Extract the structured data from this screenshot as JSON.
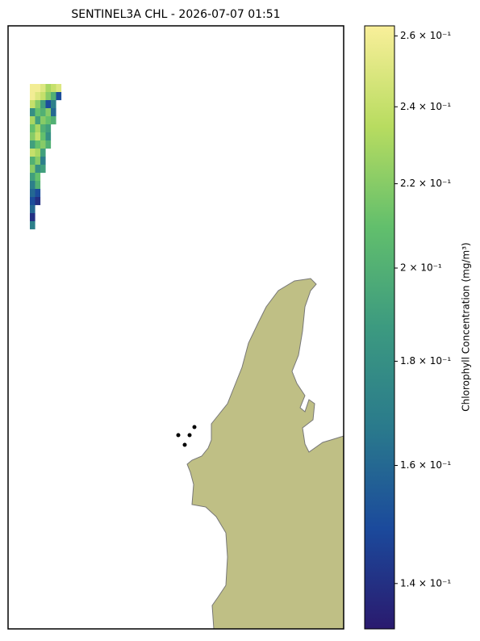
{
  "chart_data": {
    "type": "raster",
    "title": "SENTINEL3A CHL - 2026-07-07 01:51",
    "colorbar_label": "Chlorophyll Concentration (mg/m³)",
    "colorbar_scale": "log",
    "colormap": [
      "#2a1a6e",
      "#1b4a9c",
      "#2a7a8c",
      "#3c9a80",
      "#62bf6c",
      "#b8dc60",
      "#f9ef9a"
    ],
    "clim": [
      0.133,
      0.263
    ],
    "cticks": [
      {
        "value": 0.14,
        "label": "1.4 × 10⁻¹"
      },
      {
        "value": 0.16,
        "label": "1.6 × 10⁻¹"
      },
      {
        "value": 0.18,
        "label": "1.8 × 10⁻¹"
      },
      {
        "value": 0.2,
        "label": "2 × 10⁻¹"
      },
      {
        "value": 0.22,
        "label": "2.2 × 10⁻¹"
      },
      {
        "value": 0.24,
        "label": "2.4 × 10⁻¹"
      },
      {
        "value": 0.26,
        "label": "2.6 × 10⁻¹"
      }
    ],
    "grid_values": [
      [
        0.26,
        0.26,
        0.25,
        0.23,
        0.24,
        0.25
      ],
      [
        0.26,
        0.25,
        0.24,
        0.22,
        0.2,
        0.15
      ],
      [
        0.24,
        0.22,
        0.19,
        0.15,
        0.17,
        null
      ],
      [
        0.18,
        0.21,
        0.2,
        0.22,
        0.16,
        null
      ],
      [
        0.23,
        0.19,
        0.22,
        0.21,
        0.2,
        null
      ],
      [
        0.21,
        0.23,
        0.2,
        0.19,
        null,
        null
      ],
      [
        0.22,
        0.24,
        0.21,
        0.18,
        null,
        null
      ],
      [
        0.19,
        0.21,
        0.22,
        0.2,
        null,
        null
      ],
      [
        0.24,
        0.23,
        0.19,
        null,
        null,
        null
      ],
      [
        0.2,
        0.22,
        0.17,
        null,
        null,
        null
      ],
      [
        0.22,
        0.18,
        0.19,
        null,
        null,
        null
      ],
      [
        0.19,
        0.21,
        null,
        null,
        null,
        null
      ],
      [
        0.17,
        0.2,
        null,
        null,
        null,
        null
      ],
      [
        0.16,
        0.15,
        null,
        null,
        null,
        null
      ],
      [
        0.15,
        0.14,
        null,
        null,
        null,
        null
      ],
      [
        0.16,
        null,
        null,
        null,
        null,
        null
      ],
      [
        0.14,
        null,
        null,
        null,
        null,
        null
      ],
      [
        0.17,
        null,
        null,
        null,
        null,
        null
      ]
    ]
  }
}
